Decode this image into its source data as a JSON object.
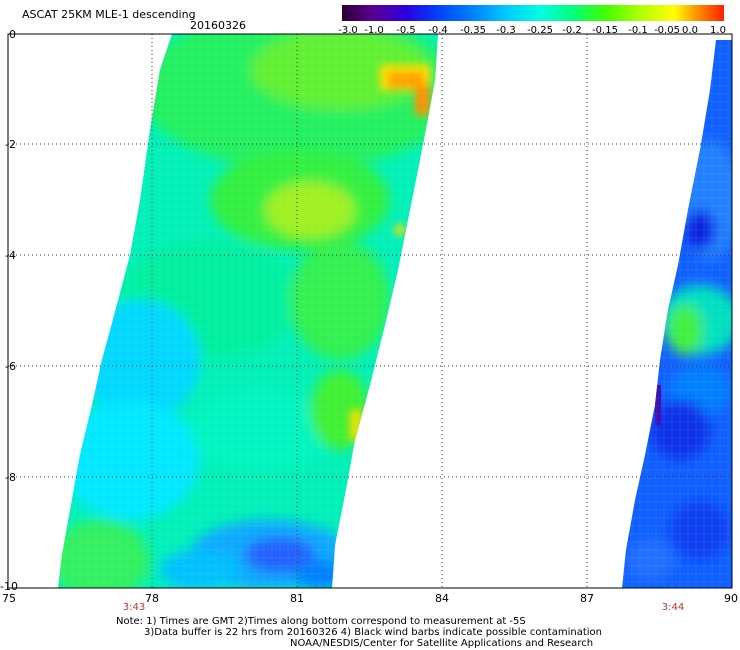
{
  "header": {
    "title": "ASCAT 25KM MLE-1 descending",
    "date": "20160326"
  },
  "colorbar": {
    "labels": [
      "-3.0",
      "-1.0",
      "-0.5",
      "-0.4",
      "-0.35",
      "-0.3",
      "-0.25",
      "-0.2",
      "-0.15",
      "-0.1",
      "-0.05",
      "0.0",
      "1.0"
    ],
    "colors": [
      "#2a0030",
      "#5a0090",
      "#2a00e0",
      "#0040ff",
      "#0080ff",
      "#00c8ff",
      "#00ffe0",
      "#00ff80",
      "#40ff00",
      "#b0ff00",
      "#ffff00",
      "#ff9000",
      "#ff2000"
    ]
  },
  "axes": {
    "x_ticks": [
      "75",
      "78",
      "81",
      "84",
      "87",
      "90"
    ],
    "y_ticks": [
      "0",
      "-2",
      "-4",
      "-6",
      "-8",
      "-10"
    ]
  },
  "swath_times": [
    "3:43",
    "3:44"
  ],
  "notes": [
    "Note: 1) Times are GMT 2)Times along bottom correspond to measurement at -5S",
    "3)Data buffer is 22 hrs from 20160326 4) Black wind barbs indicate possible contamination",
    "NOAA/NESDIS/Center for Satellite Applications and Research"
  ]
}
